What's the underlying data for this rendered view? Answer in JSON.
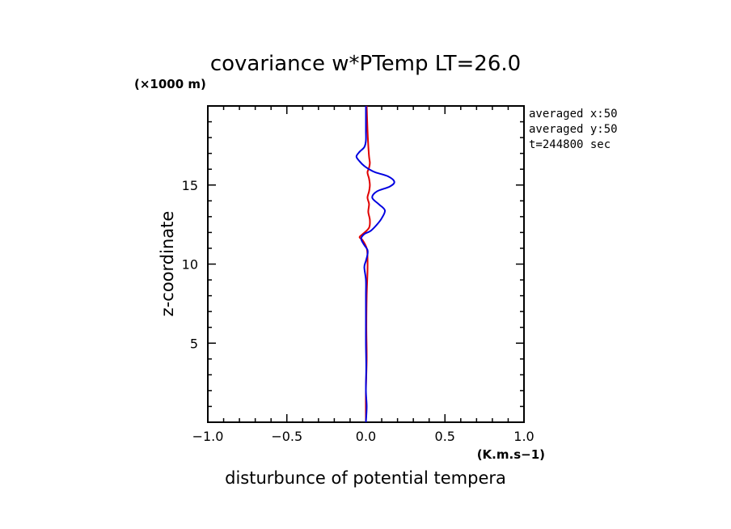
{
  "chart_data": {
    "type": "line",
    "title": "covariance w*PTemp LT=26.0",
    "xlabel": "disturbunce of potential tempera",
    "ylabel": "z-coordinate",
    "x_unit": "(K.m.s−1)",
    "y_unit": "(×1000 m)",
    "xlim": [
      -1.0,
      1.0
    ],
    "ylim": [
      0,
      20
    ],
    "x_ticks": [
      -1.0,
      -0.5,
      0.0,
      0.5,
      1.0
    ],
    "x_tick_labels": [
      "−1.0",
      "−0.5",
      "0.0",
      "0.5",
      "1.0"
    ],
    "y_ticks": [
      5,
      10,
      15
    ],
    "y_tick_labels": [
      "5",
      "10",
      "15"
    ],
    "annotations": [
      "averaged  x:50",
      "averaged  y:50",
      "t=244800 sec"
    ],
    "grid": false,
    "series": [
      {
        "color": "#e00000",
        "points": [
          [
            0.0,
            0.0
          ],
          [
            0.0,
            2.0
          ],
          [
            0.005,
            4.0
          ],
          [
            0.003,
            6.0
          ],
          [
            0.005,
            8.0
          ],
          [
            0.01,
            9.5
          ],
          [
            0.01,
            10.5
          ],
          [
            0.005,
            11.0
          ],
          [
            -0.02,
            11.5
          ],
          [
            -0.04,
            11.7
          ],
          [
            -0.02,
            11.9
          ],
          [
            0.02,
            12.3
          ],
          [
            0.025,
            12.8
          ],
          [
            0.015,
            13.3
          ],
          [
            0.02,
            13.8
          ],
          [
            0.01,
            14.2
          ],
          [
            0.02,
            14.6
          ],
          [
            0.025,
            15.0
          ],
          [
            0.02,
            15.4
          ],
          [
            0.01,
            15.8
          ],
          [
            0.02,
            16.1
          ],
          [
            0.025,
            16.4
          ],
          [
            0.02,
            16.8
          ],
          [
            0.015,
            17.5
          ],
          [
            0.01,
            18.5
          ],
          [
            0.005,
            20.0
          ]
        ]
      },
      {
        "color": "#0000e0",
        "points": [
          [
            0.0,
            0.0
          ],
          [
            0.005,
            1.0
          ],
          [
            0.0,
            2.0
          ],
          [
            0.002,
            3.5
          ],
          [
            0.0,
            5.0
          ],
          [
            0.0,
            6.5
          ],
          [
            0.0,
            8.0
          ],
          [
            0.0,
            9.0
          ],
          [
            -0.01,
            9.8
          ],
          [
            0.0,
            10.2
          ],
          [
            0.01,
            10.6
          ],
          [
            0.01,
            10.9
          ],
          [
            -0.01,
            11.2
          ],
          [
            -0.03,
            11.6
          ],
          [
            -0.01,
            11.9
          ],
          [
            0.03,
            12.1
          ],
          [
            0.07,
            12.5
          ],
          [
            0.1,
            12.9
          ],
          [
            0.12,
            13.4
          ],
          [
            0.08,
            13.8
          ],
          [
            0.04,
            14.2
          ],
          [
            0.07,
            14.6
          ],
          [
            0.15,
            14.9
          ],
          [
            0.18,
            15.2
          ],
          [
            0.14,
            15.55
          ],
          [
            0.06,
            15.8
          ],
          [
            0.02,
            16.0
          ],
          [
            -0.01,
            16.2
          ],
          [
            -0.04,
            16.5
          ],
          [
            -0.06,
            16.8
          ],
          [
            -0.04,
            17.1
          ],
          [
            -0.01,
            17.4
          ],
          [
            0.0,
            17.8
          ],
          [
            0.0,
            18.5
          ],
          [
            0.0,
            20.0
          ]
        ]
      }
    ]
  }
}
